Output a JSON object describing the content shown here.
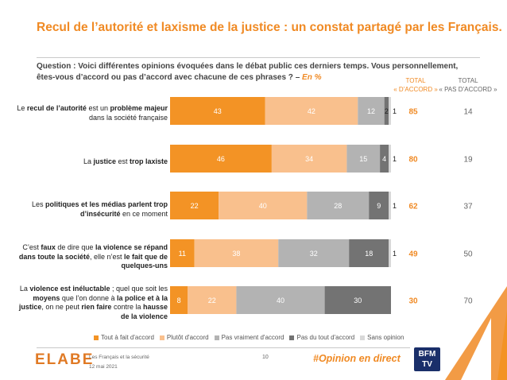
{
  "title": "Recul de l’autorité et laxisme de la justice : un constat partagé par les Français.",
  "question": {
    "text": "Question : Voici différentes opinions évoquées dans le débat public ces derniers temps. Vous personnellement, êtes-vous d’accord ou pas d’accord avec chacune de ces phrases ? –",
    "unit": "En %"
  },
  "columns": {
    "agree_line1": "TOTAL",
    "agree_line2": "« D’ACCORD »",
    "disagree_line1": "TOTAL",
    "disagree_line2": "« PAS D’ACCORD »"
  },
  "rows": [
    {
      "label_html": "Le <b>recul de l’autorité</b> est un <b>problème majeur</b><br>dans la société française"
    },
    {
      "label_html": "La <b>justice</b> est <b>trop laxiste</b>"
    },
    {
      "label_html": "Les <b>politiques et les médias parlent trop<br>d’insécurité</b> en ce moment"
    },
    {
      "label_html": "C’est <b>faux</b> de dire que <b>la violence se répand<br>dans toute la société</b>, elle n’est <b>le fait que de<br>quelques-uns</b>"
    },
    {
      "label_html": "La <b>violence est inéluctable</b> ; quel que soit les<br><b>moyens</b> que l’on donne à <b>la police et à la<br>justice</b>, on ne peut <b>rien faire</b> contre la <b>hausse<br>de la violence</b>"
    }
  ],
  "colors": {
    "accent": "#f08a24",
    "series": [
      "#f39325",
      "#f9c08d",
      "#b3b3b3",
      "#737373",
      "#d8d8d8"
    ]
  },
  "chart_data": {
    "type": "bar",
    "orientation": "horizontal",
    "stacked": true,
    "unit": "%",
    "categories": [
      "Le recul de l'autorité est un problème majeur dans la société française",
      "La justice est trop laxiste",
      "Les politiques et les médias parlent trop d'insécurité en ce moment",
      "C'est faux de dire que la violence se répand dans toute la société, elle n'est le fait que de quelques-uns",
      "La violence est inéluctable ; quel que soit les moyens que l'on donne à la police et à la justice, on ne peut rien faire contre la hausse de la violence"
    ],
    "series": [
      {
        "name": "Tout à fait d'accord",
        "values": [
          43,
          46,
          22,
          11,
          8
        ]
      },
      {
        "name": "Plutôt d'accord",
        "values": [
          42,
          34,
          40,
          38,
          22
        ]
      },
      {
        "name": "Pas vraiment d'accord",
        "values": [
          12,
          15,
          28,
          32,
          40
        ]
      },
      {
        "name": "Pas du tout d'accord",
        "values": [
          2,
          4,
          9,
          18,
          30
        ]
      },
      {
        "name": "Sans opinion",
        "values": [
          1,
          1,
          1,
          1,
          0
        ]
      }
    ],
    "total_agree": [
      85,
      80,
      62,
      49,
      30
    ],
    "total_disagree": [
      14,
      19,
      37,
      50,
      70
    ],
    "legend_position": "bottom",
    "grid": false
  },
  "footer": {
    "logo": "ELABE",
    "source": "Les Français et la sécurité",
    "date": "12 mai 2021",
    "page": "10",
    "hashtag": "#Opinion en direct",
    "partner_logo": "BFM TV"
  }
}
